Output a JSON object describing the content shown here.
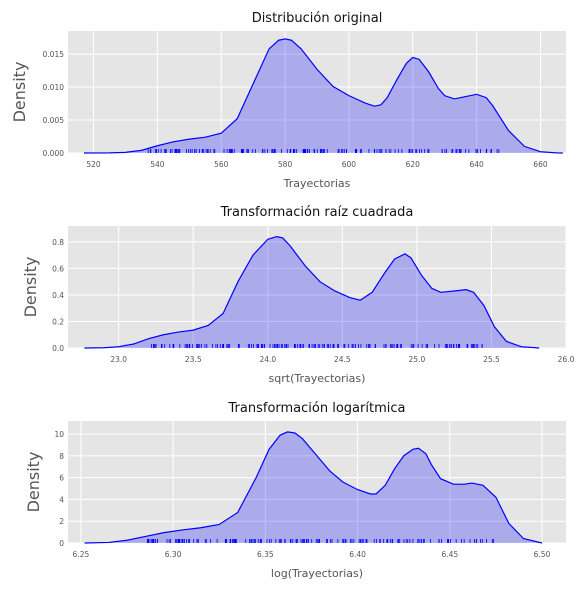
{
  "chart_data": [
    {
      "type": "area",
      "title": "Distribución original",
      "xlabel": "Trayectorias",
      "ylabel": "Density",
      "xlim": [
        512,
        668
      ],
      "ylim": [
        0,
        0.0185
      ],
      "xticks": [
        520,
        540,
        560,
        580,
        600,
        620,
        640,
        660
      ],
      "xtick_labels": [
        "520",
        "540",
        "560",
        "580",
        "600",
        "620",
        "640",
        "660"
      ],
      "yticks": [
        0,
        0.005,
        0.01,
        0.015
      ],
      "ytick_labels": [
        "0.000",
        "0.005",
        "0.010",
        "0.015"
      ],
      "grid": true,
      "rug": true,
      "series": [
        {
          "x": [
            517,
            525,
            530,
            535,
            540,
            545,
            550,
            555,
            560,
            565,
            570,
            575,
            578,
            580,
            582,
            585,
            590,
            595,
            600,
            605,
            608,
            610,
            612,
            615,
            618,
            620,
            622,
            625,
            628,
            630,
            633,
            636,
            640,
            643,
            645,
            650,
            655,
            660,
            665,
            667
          ],
          "y": [
            0,
            2e-05,
            0.0001,
            0.0004,
            0.0011,
            0.0017,
            0.0021,
            0.0024,
            0.003,
            0.0052,
            0.0105,
            0.0158,
            0.0171,
            0.0173,
            0.0171,
            0.0158,
            0.0127,
            0.0101,
            0.0087,
            0.0076,
            0.0071,
            0.0073,
            0.0084,
            0.0111,
            0.0136,
            0.0145,
            0.0142,
            0.0123,
            0.0098,
            0.0087,
            0.0082,
            0.0085,
            0.0089,
            0.0084,
            0.0072,
            0.0034,
            0.001,
            0.0002,
            2e-05,
            0
          ]
        }
      ],
      "rug_range": [
        537,
        648
      ]
    },
    {
      "type": "area",
      "title": "Transformación raíz cuadrada",
      "xlabel": "sqrt(Trayectorias)",
      "ylabel": "Density",
      "xlim": [
        22.66,
        26.0
      ],
      "ylim": [
        0,
        0.92
      ],
      "xticks": [
        23.0,
        23.5,
        24.0,
        24.5,
        25.0,
        25.5,
        26.0
      ],
      "xtick_labels": [
        "23.0",
        "23.5",
        "24.0",
        "24.5",
        "25.0",
        "25.5",
        "26.0"
      ],
      "yticks": [
        0,
        0.2,
        0.4,
        0.6,
        0.8
      ],
      "ytick_labels": [
        "0.0",
        "0.2",
        "0.4",
        "0.6",
        "0.8"
      ],
      "grid": true,
      "rug": true,
      "series": [
        {
          "x": [
            22.77,
            22.9,
            23.0,
            23.1,
            23.2,
            23.3,
            23.4,
            23.5,
            23.6,
            23.7,
            23.8,
            23.9,
            24.0,
            24.06,
            24.1,
            24.15,
            24.25,
            24.35,
            24.45,
            24.55,
            24.62,
            24.7,
            24.78,
            24.85,
            24.92,
            24.96,
            25.03,
            25.1,
            25.16,
            25.25,
            25.33,
            25.38,
            25.45,
            25.52,
            25.6,
            25.7,
            25.82
          ],
          "y": [
            0,
            0.002,
            0.01,
            0.03,
            0.07,
            0.1,
            0.12,
            0.135,
            0.17,
            0.26,
            0.5,
            0.7,
            0.82,
            0.84,
            0.83,
            0.77,
            0.62,
            0.5,
            0.43,
            0.38,
            0.36,
            0.42,
            0.56,
            0.67,
            0.71,
            0.68,
            0.55,
            0.45,
            0.42,
            0.43,
            0.44,
            0.42,
            0.32,
            0.16,
            0.05,
            0.01,
            0
          ]
        }
      ],
      "rug_range": [
        23.17,
        25.46
      ]
    },
    {
      "type": "area",
      "title": "Transformación logarítmica",
      "xlabel": "log(Trayectorias)",
      "ylabel": "Density",
      "xlim": [
        6.243,
        6.513
      ],
      "ylim": [
        0,
        11.2
      ],
      "xticks": [
        6.25,
        6.3,
        6.35,
        6.4,
        6.45,
        6.5
      ],
      "xtick_labels": [
        "6.25",
        "6.30",
        "6.35",
        "6.40",
        "6.45",
        "6.50"
      ],
      "yticks": [
        0,
        2,
        4,
        6,
        8,
        10
      ],
      "ytick_labels": [
        "0",
        "2",
        "4",
        "6",
        "8",
        "10"
      ],
      "grid": true,
      "rug": true,
      "series": [
        {
          "x": [
            6.252,
            6.265,
            6.275,
            6.285,
            6.295,
            6.305,
            6.315,
            6.325,
            6.335,
            6.345,
            6.352,
            6.358,
            6.362,
            6.366,
            6.37,
            6.378,
            6.385,
            6.392,
            6.4,
            6.407,
            6.41,
            6.415,
            6.42,
            6.425,
            6.43,
            6.433,
            6.437,
            6.44,
            6.445,
            6.452,
            6.458,
            6.462,
            6.468,
            6.475,
            6.482,
            6.49,
            6.5
          ],
          "y": [
            0,
            0.05,
            0.25,
            0.6,
            0.95,
            1.2,
            1.4,
            1.7,
            2.8,
            6.0,
            8.6,
            9.9,
            10.2,
            10.1,
            9.6,
            8.0,
            6.6,
            5.6,
            4.9,
            4.5,
            4.5,
            5.3,
            6.8,
            8.0,
            8.6,
            8.7,
            8.2,
            7.2,
            5.9,
            5.4,
            5.4,
            5.5,
            5.3,
            4.2,
            1.8,
            0.4,
            0
          ]
        }
      ],
      "rug_range": [
        6.286,
        6.474
      ]
    }
  ]
}
